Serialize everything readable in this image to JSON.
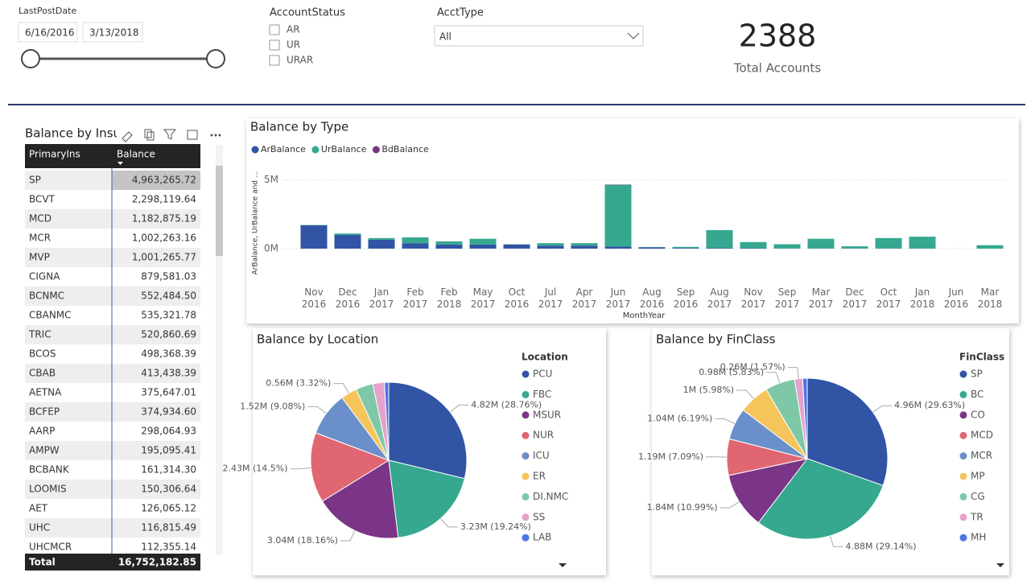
{
  "slicers": {
    "last_post_date": {
      "label": "LastPostDate",
      "start": "6/16/2016",
      "end": "3/13/2018"
    },
    "account_status": {
      "label": "AccountStatus",
      "options": [
        "AR",
        "UR",
        "URAR"
      ]
    },
    "acct_type": {
      "label": "AcctType",
      "selected": "All"
    }
  },
  "kpi": {
    "value": 2388,
    "label": "Total Accounts"
  },
  "table": {
    "title": "Balance by Insu",
    "columns": [
      "PrimaryIns",
      "Balance"
    ],
    "rows": [
      [
        "SP",
        "4,963,265.72"
      ],
      [
        "BCVT",
        "2,298,119.64"
      ],
      [
        "MCD",
        "1,182,875.19"
      ],
      [
        "MCR",
        "1,002,263.16"
      ],
      [
        "MVP",
        "1,001,265.77"
      ],
      [
        "CIGNA",
        "879,581.03"
      ],
      [
        "BCNMC",
        "552,484.50"
      ],
      [
        "CBANMC",
        "535,321.78"
      ],
      [
        "TRIC",
        "520,860.69"
      ],
      [
        "BCOS",
        "498,368.39"
      ],
      [
        "CBAB",
        "413,438.39"
      ],
      [
        "AETNA",
        "375,647.01"
      ],
      [
        "BCFEP",
        "374,934.60"
      ],
      [
        "AARP",
        "298,064.93"
      ],
      [
        "AMPW",
        "195,095.41"
      ],
      [
        "BCBANK",
        "161,314.30"
      ],
      [
        "LOOMIS",
        "150,306.64"
      ],
      [
        "AET",
        "126,065.12"
      ],
      [
        "UHC",
        "116,815.49"
      ],
      [
        "UHCMCR",
        "112,355.14"
      ]
    ],
    "total": [
      "Total",
      "16,752,182.85"
    ]
  },
  "chart_data": [
    {
      "type": "bar",
      "stacked": true,
      "title": "Balance by Type",
      "x_label": "MonthYear",
      "y_label": "ArBalance, UrBalance and ...",
      "categories": [
        "Nov 2016",
        "Dec 2016",
        "Jan 2017",
        "Feb 2017",
        "Feb 2018",
        "May 2017",
        "Oct 2016",
        "Jul 2017",
        "Apr 2017",
        "Jun 2017",
        "Aug 2016",
        "Sep 2016",
        "Aug 2017",
        "Nov 2017",
        "Sep 2017",
        "Mar 2017",
        "Dec 2017",
        "Oct 2017",
        "Jan 2018",
        "Jun 2016",
        "Mar 2018"
      ],
      "series": [
        {
          "name": "ArBalance",
          "color": "#3155a4",
          "values": [
            1700000,
            1000000,
            650000,
            400000,
            300000,
            300000,
            300000,
            220000,
            220000,
            150000,
            100000,
            50000,
            50000,
            30000,
            20000,
            20000,
            20000,
            20000,
            20000,
            0,
            0
          ]
        },
        {
          "name": "UrBalance",
          "color": "#36a88f",
          "values": [
            20000,
            100000,
            120000,
            420000,
            230000,
            420000,
            20000,
            180000,
            180000,
            4500000,
            20000,
            80000,
            1300000,
            450000,
            300000,
            700000,
            150000,
            750000,
            850000,
            0,
            250000
          ]
        },
        {
          "name": "BdBalance",
          "color": "#7b3586",
          "values": [
            0,
            0,
            0,
            0,
            0,
            0,
            0,
            0,
            0,
            20000,
            0,
            0,
            0,
            0,
            0,
            0,
            0,
            0,
            0,
            0,
            0
          ]
        }
      ],
      "ylim": [
        0,
        5800000
      ],
      "yticks": [
        {
          "value": 0,
          "label": "0M"
        },
        {
          "value": 5000000,
          "label": "5M"
        }
      ],
      "grid": true
    },
    {
      "type": "pie",
      "title": "Balance by Location",
      "legend_title": "Location",
      "categories": [
        "PCU",
        "FBC",
        "MSUR",
        "NUR",
        "ICU",
        "ER",
        "DI.NMC",
        "SS",
        "LAB"
      ],
      "values": [
        4820000,
        3230000,
        3040000,
        2430000,
        1520000,
        560000,
        600000,
        400000,
        150000
      ],
      "value_labels": [
        "4.82M (28.76%)",
        "3.23M (19.24%)",
        "3.04M (18.16%)",
        "2.43M (14.5%)",
        "1.52M (9.08%)",
        "0.56M (3.32%)",
        null,
        null,
        null
      ],
      "colors": [
        "#3155a4",
        "#36a88f",
        "#7b3586",
        "#e06672",
        "#6b8fca",
        "#f5c45b",
        "#7ec8a8",
        "#e5a2cc",
        "#4f74e6"
      ]
    },
    {
      "type": "pie",
      "title": "Balance by FinClass",
      "legend_title": "FinClass",
      "categories": [
        "SP",
        "BC",
        "CO",
        "MCD",
        "MCR",
        "MP",
        "CG",
        "TR",
        "MH"
      ],
      "values": [
        4960000,
        4880000,
        1840000,
        1190000,
        1040000,
        1000000,
        980000,
        260000,
        150000
      ],
      "value_labels": [
        "4.96M (29.63%)",
        "4.88M (29.14%)",
        "1.84M (10.99%)",
        "1.19M (7.09%)",
        "1.04M (6.19%)",
        "1M (5.98%)",
        "0.98M (5.83%)",
        "0.26M (1.57%)",
        null
      ],
      "colors": [
        "#3155a4",
        "#36a88f",
        "#7b3586",
        "#e06672",
        "#6b8fca",
        "#f5c45b",
        "#7ec8a8",
        "#e5a2cc",
        "#4f74e6"
      ]
    }
  ]
}
